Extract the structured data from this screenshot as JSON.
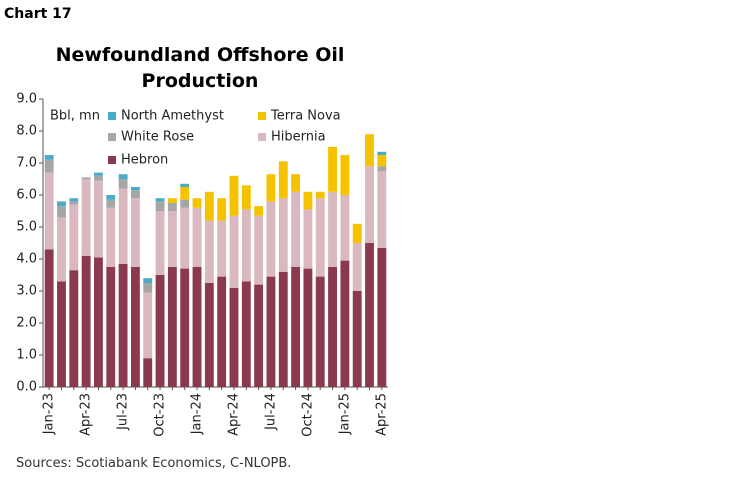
{
  "chart_label": "Chart 17",
  "chart_data": {
    "type": "stacked-bar",
    "title": "Newfoundland Offshore Oil Production",
    "y_label": "Bbl, mn",
    "categories": [
      "Jan-23",
      null,
      null,
      "Apr-23",
      null,
      null,
      "Jul-23",
      null,
      null,
      "Oct-23",
      null,
      null,
      "Jan-24",
      null,
      null,
      "Apr-24",
      null,
      null,
      "Jul-24",
      null,
      null,
      "Oct-24",
      null,
      null,
      "Jan-25",
      null,
      null,
      "Apr-25"
    ],
    "series": [
      {
        "name": "Hebron",
        "color": "#8b3a4e",
        "values": [
          4.3,
          3.3,
          3.65,
          4.1,
          4.05,
          3.75,
          3.85,
          3.75,
          0.9,
          3.5,
          3.75,
          3.7,
          3.75,
          3.25,
          3.45,
          3.1,
          3.3,
          3.2,
          3.45,
          3.6,
          3.75,
          3.7,
          3.45,
          3.75,
          3.95,
          3.0,
          4.5,
          4.35
        ]
      },
      {
        "name": "Hibernia",
        "color": "#d9b8c0",
        "values": [
          2.4,
          2.0,
          2.05,
          2.4,
          2.4,
          1.85,
          2.35,
          2.15,
          2.05,
          2.0,
          1.75,
          1.9,
          1.85,
          1.95,
          1.75,
          2.25,
          2.25,
          2.15,
          2.35,
          2.3,
          2.35,
          1.85,
          2.45,
          2.35,
          2.05,
          1.5,
          2.4,
          2.4
        ]
      },
      {
        "name": "White Rose",
        "color": "#a6a6a6",
        "values": [
          0.4,
          0.35,
          0.1,
          0.05,
          0.15,
          0.25,
          0.3,
          0.25,
          0.3,
          0.3,
          0.25,
          0.25,
          0,
          0,
          0,
          0,
          0,
          0,
          0,
          0,
          0,
          0,
          0,
          0,
          0,
          0,
          0,
          0.15
        ]
      },
      {
        "name": "Terra Nova",
        "color": "#f5c200",
        "values": [
          0,
          0,
          0,
          0,
          0,
          0,
          0,
          0,
          0,
          0,
          0.15,
          0.4,
          0.3,
          0.9,
          0.7,
          1.25,
          0.75,
          0.3,
          0.85,
          1.15,
          0.55,
          0.55,
          0.2,
          1.4,
          1.25,
          0.6,
          1.0,
          0.35
        ]
      },
      {
        "name": "North Amethyst",
        "color": "#4bacc6",
        "values": [
          0.15,
          0.15,
          0.1,
          0,
          0.1,
          0.15,
          0.15,
          0.1,
          0.15,
          0.1,
          0,
          0.1,
          0,
          0,
          0,
          0,
          0,
          0,
          0,
          0,
          0,
          0,
          0,
          0,
          0,
          0,
          0,
          0.1
        ]
      }
    ],
    "ylim": [
      0,
      9
    ],
    "yticks": [
      {
        "value": 0,
        "label": "0.0"
      },
      {
        "value": 1,
        "label": "1.0"
      },
      {
        "value": 2,
        "label": "2.0"
      },
      {
        "value": 3,
        "label": "3.0"
      },
      {
        "value": 4,
        "label": "4.0"
      },
      {
        "value": 5,
        "label": "5.0"
      },
      {
        "value": 6,
        "label": "6.0"
      },
      {
        "value": 7,
        "label": "7.0"
      },
      {
        "value": 8,
        "label": "8.0"
      },
      {
        "value": 9,
        "label": "9.0"
      }
    ],
    "source": "Sources: Scotiabank Economics, C-NLOPB."
  }
}
